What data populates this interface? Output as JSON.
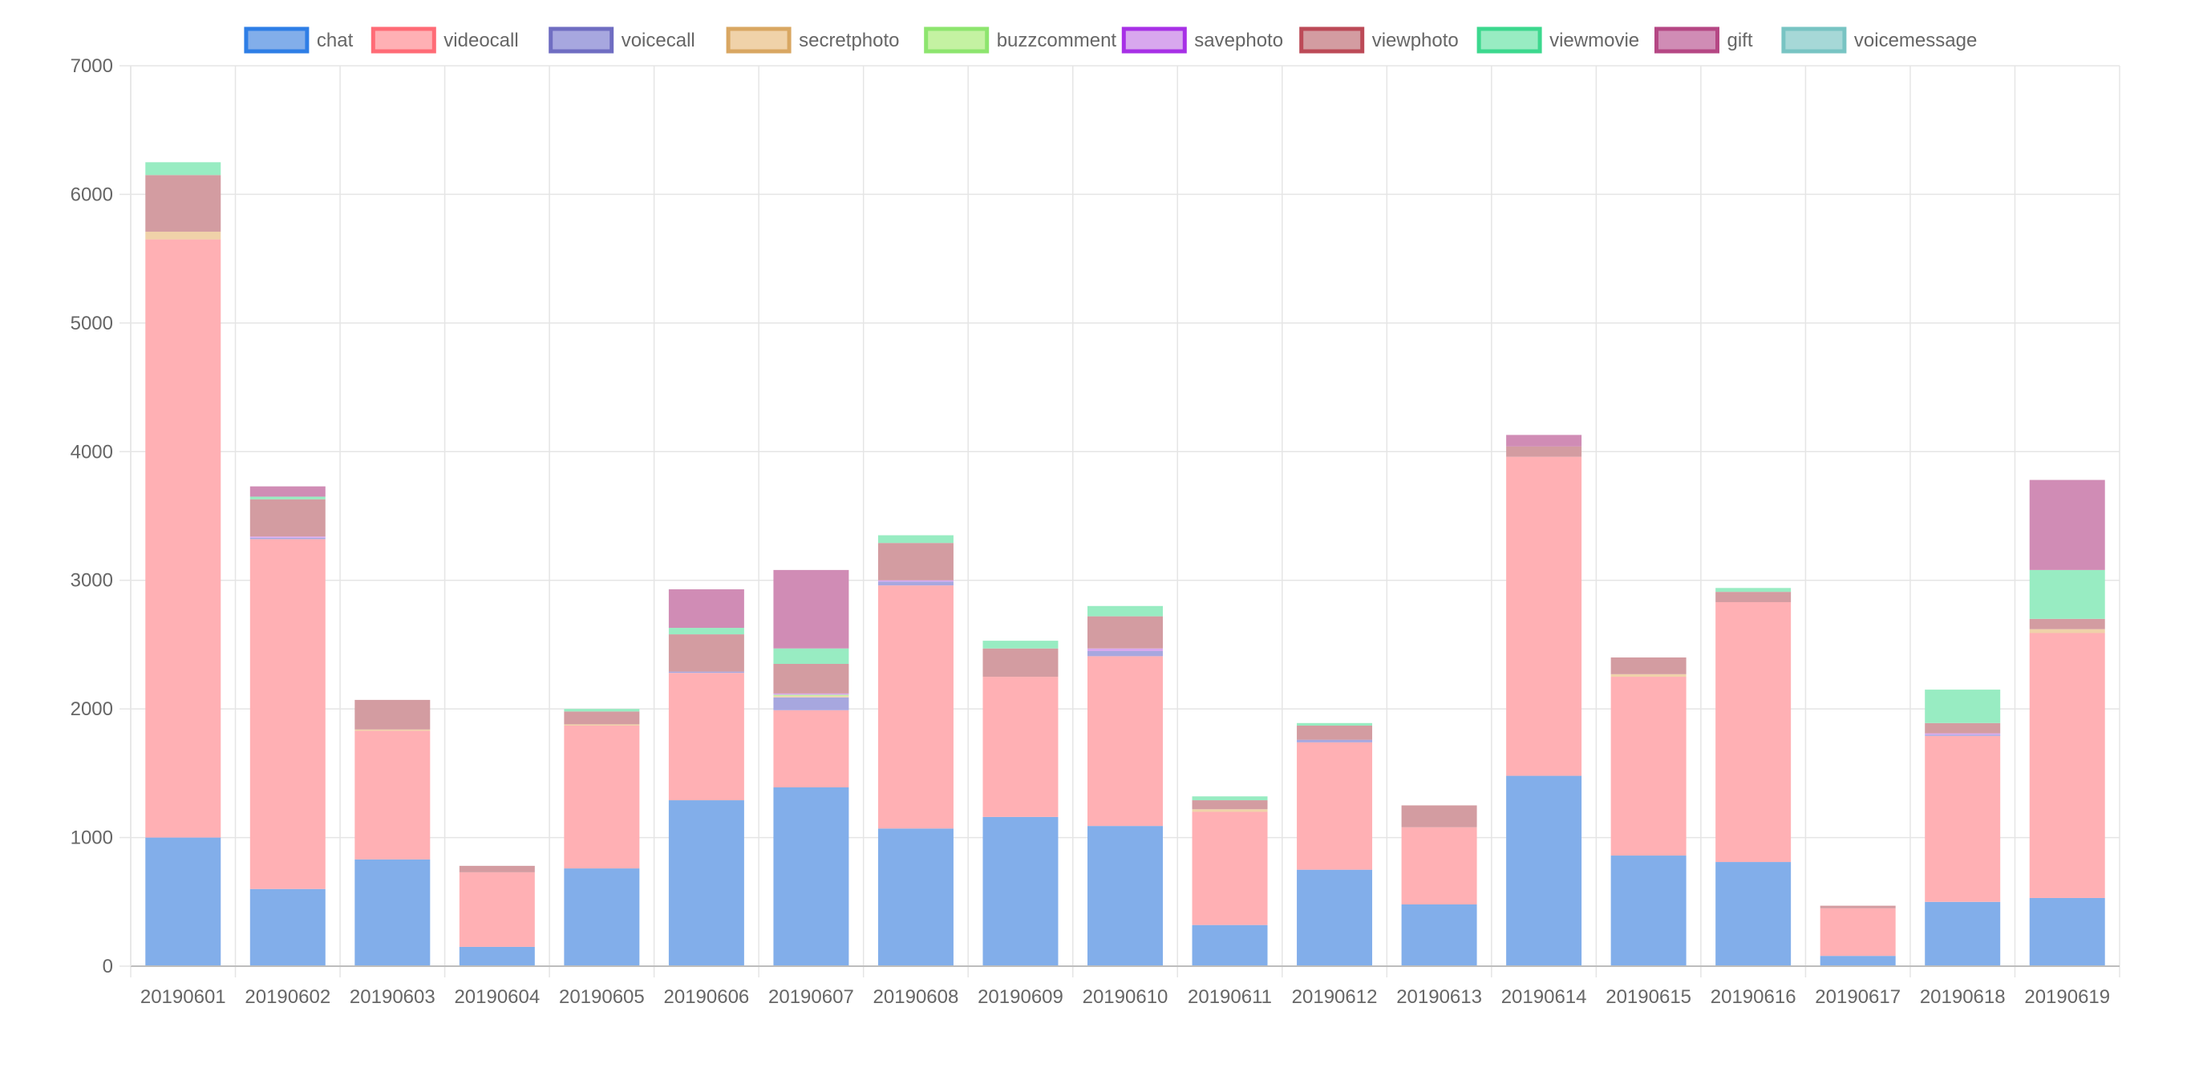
{
  "chart_data": {
    "type": "bar",
    "stacked": true,
    "title": "",
    "xlabel": "",
    "ylabel": "",
    "ylim": [
      0,
      7000
    ],
    "yticks": [
      0,
      1000,
      2000,
      3000,
      4000,
      5000,
      6000,
      7000
    ],
    "grid": true,
    "legend_position": "top",
    "categories": [
      "20190601",
      "20190602",
      "20190603",
      "20190604",
      "20190605",
      "20190606",
      "20190607",
      "20190608",
      "20190609",
      "20190610",
      "20190611",
      "20190612",
      "20190613",
      "20190614",
      "20190615",
      "20190616",
      "20190617",
      "20190618",
      "20190619"
    ],
    "series": [
      {
        "name": "chat",
        "fill": "#82aeea",
        "border": "#2e7ee6",
        "values": [
          1000,
          600,
          830,
          150,
          760,
          1290,
          1390,
          1070,
          1160,
          1090,
          320,
          750,
          480,
          1480,
          860,
          810,
          80,
          500,
          530
        ]
      },
      {
        "name": "videocall",
        "fill": "#ffb0b4",
        "border": "#ff6b76",
        "values": [
          4650,
          2720,
          1000,
          580,
          1110,
          990,
          600,
          1890,
          1090,
          1320,
          880,
          990,
          600,
          2480,
          1390,
          2020,
          370,
          1290,
          2060
        ]
      },
      {
        "name": "voicecall",
        "fill": "#a7a7df",
        "border": "#6f6dc2",
        "values": [
          0,
          10,
          0,
          0,
          0,
          10,
          100,
          30,
          0,
          40,
          0,
          20,
          0,
          0,
          0,
          0,
          0,
          10,
          0
        ]
      },
      {
        "name": "secretphoto",
        "fill": "#f0d2a9",
        "border": "#d9a762",
        "values": [
          60,
          0,
          10,
          0,
          10,
          0,
          10,
          0,
          0,
          0,
          20,
          0,
          0,
          0,
          20,
          0,
          0,
          0,
          30
        ]
      },
      {
        "name": "buzzcomment",
        "fill": "#c4f2a2",
        "border": "#8de56e",
        "values": [
          0,
          0,
          0,
          0,
          0,
          0,
          10,
          0,
          0,
          0,
          0,
          0,
          0,
          0,
          0,
          0,
          0,
          0,
          0
        ]
      },
      {
        "name": "savephoto",
        "fill": "#d8a7ee",
        "border": "#a730e6",
        "values": [
          0,
          10,
          0,
          0,
          0,
          0,
          10,
          10,
          0,
          20,
          0,
          0,
          0,
          0,
          0,
          0,
          0,
          10,
          0
        ]
      },
      {
        "name": "viewphoto",
        "fill": "#d39ca1",
        "border": "#bc4a57",
        "values": [
          440,
          290,
          230,
          50,
          100,
          290,
          230,
          290,
          220,
          250,
          70,
          110,
          170,
          80,
          130,
          80,
          20,
          80,
          80
        ]
      },
      {
        "name": "viewmovie",
        "fill": "#98ecc2",
        "border": "#3cd88e",
        "values": [
          100,
          20,
          0,
          0,
          20,
          50,
          120,
          60,
          60,
          80,
          30,
          20,
          0,
          0,
          0,
          30,
          0,
          260,
          380
        ]
      },
      {
        "name": "gift",
        "fill": "#d08cb5",
        "border": "#b54784",
        "values": [
          0,
          80,
          0,
          0,
          0,
          300,
          610,
          0,
          0,
          0,
          0,
          0,
          0,
          90,
          0,
          0,
          0,
          0,
          700
        ]
      },
      {
        "name": "voicemessage",
        "fill": "#a6d8d7",
        "border": "#78c4c3",
        "values": [
          0,
          0,
          0,
          0,
          0,
          0,
          0,
          0,
          0,
          0,
          0,
          0,
          0,
          0,
          0,
          0,
          0,
          0,
          0
        ]
      }
    ]
  }
}
